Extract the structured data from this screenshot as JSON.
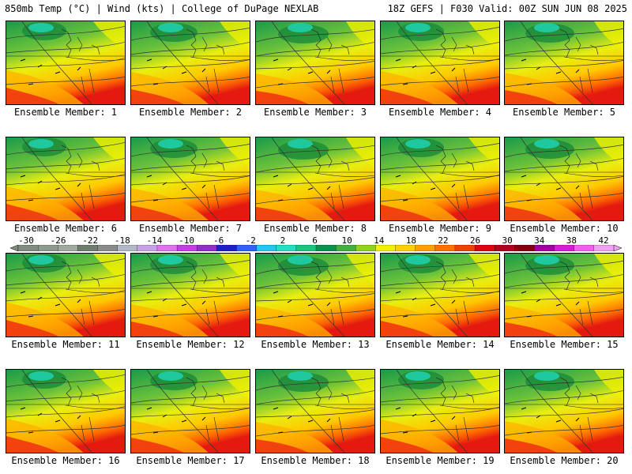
{
  "header": {
    "left": "850mb Temp (°C) | Wind (kts) | College of DuPage NEXLAB",
    "right": "18Z GEFS | F030 Valid: 00Z SUN JUN 08 2025"
  },
  "panels": [
    {
      "label": "Ensemble Member: 1"
    },
    {
      "label": "Ensemble Member: 2"
    },
    {
      "label": "Ensemble Member: 3"
    },
    {
      "label": "Ensemble Member: 4"
    },
    {
      "label": "Ensemble Member: 5"
    },
    {
      "label": "Ensemble Member: 6"
    },
    {
      "label": "Ensemble Member: 7"
    },
    {
      "label": "Ensemble Member: 8"
    },
    {
      "label": "Ensemble Member: 9"
    },
    {
      "label": "Ensemble Member: 10"
    },
    {
      "label": "Ensemble Member: 11"
    },
    {
      "label": "Ensemble Member: 12"
    },
    {
      "label": "Ensemble Member: 13"
    },
    {
      "label": "Ensemble Member: 14"
    },
    {
      "label": "Ensemble Member: 15"
    },
    {
      "label": "Ensemble Member: 16"
    },
    {
      "label": "Ensemble Member: 17"
    },
    {
      "label": "Ensemble Member: 18"
    },
    {
      "label": "Ensemble Member: 19"
    },
    {
      "label": "Ensemble Member: 20"
    }
  ],
  "colorbar": {
    "ticks": [
      "-30",
      "-26",
      "-22",
      "-18",
      "-14",
      "-10",
      "-6",
      "-2",
      "2",
      "6",
      "10",
      "14",
      "18",
      "22",
      "26",
      "30",
      "34",
      "38",
      "42"
    ],
    "colors": [
      "#7f8c7f",
      "#8e9a8e",
      "#a0a8a0",
      "#6e7d6e",
      "#8a8a8a",
      "#b0b8c8",
      "#c8a0e8",
      "#e070f0",
      "#c040e0",
      "#9030c0",
      "#2020c0",
      "#3060f0",
      "#20c8f0",
      "#20e0c0",
      "#20c080",
      "#109050",
      "#40b040",
      "#90d020",
      "#f0f000",
      "#ffd000",
      "#ffa000",
      "#ff7000",
      "#f04000",
      "#e00010",
      "#b00020",
      "#800010",
      "#a000a0",
      "#d020d0",
      "#f060f0",
      "#f0a0f0"
    ]
  }
}
